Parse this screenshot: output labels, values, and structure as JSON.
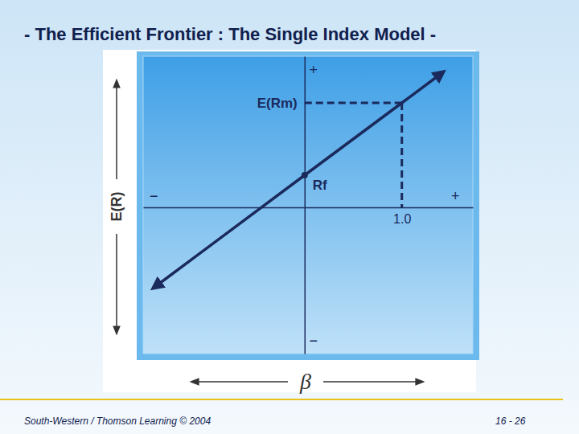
{
  "chart_data": {
    "type": "line",
    "title": "- The Efficient Frontier : The Single Index Model -",
    "x_label": "β",
    "y_label": "E(R)",
    "x": [
      -1.54,
      0,
      1,
      1.41
    ],
    "series": [
      {
        "values": [
          -9.9,
          4,
          13,
          16.7
        ],
        "color": "#1b2a5c"
      }
    ],
    "xlim": [
      -1.66,
      1.73
    ],
    "ylim": [
      -18.2,
      18.8
    ],
    "xticks": [
      {
        "value": 1,
        "label": "1.0"
      }
    ],
    "yticks": [
      {
        "value": 13,
        "label": "E(Rm)"
      }
    ],
    "annotations": [
      {
        "text": "Rf",
        "x": 0,
        "y": 4,
        "marker": "circle"
      },
      {
        "text": "+",
        "x": 0.09,
        "y": 17
      },
      {
        "text": "−",
        "x": 0.09,
        "y": -16.7
      },
      {
        "text": "−",
        "x": -1.55,
        "y": 1.3
      },
      {
        "text": "+",
        "x": 1.55,
        "y": 1.3
      }
    ]
  },
  "footer": {
    "left": "South-Western / Thomson Learning © 2004",
    "right": "16 - 26"
  }
}
